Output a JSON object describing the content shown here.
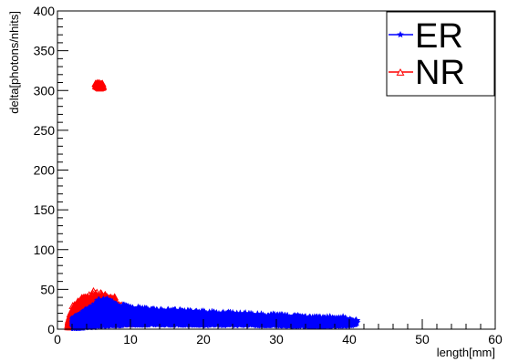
{
  "chart_data": {
    "type": "scatter",
    "title": "",
    "xlabel": "length[mm]",
    "ylabel": "delta[photons/nhits]",
    "xlim": [
      0,
      60
    ],
    "ylim": [
      0,
      400
    ],
    "x_major_ticks": [
      0,
      10,
      20,
      30,
      40,
      50,
      60
    ],
    "y_major_ticks": [
      0,
      50,
      100,
      150,
      200,
      250,
      300,
      350,
      400
    ],
    "legend_position": "top-right",
    "grid": false,
    "series": [
      {
        "name": "ER",
        "color": "#0000ff",
        "marker": "star",
        "envelope": {
          "x": [
            2.2,
            3,
            4,
            5,
            5.5,
            6,
            7,
            8,
            10,
            12,
            15,
            20,
            25,
            30,
            35,
            40,
            41
          ],
          "y_max": [
            14,
            18,
            25,
            30,
            36,
            38,
            37,
            32,
            28,
            26,
            24,
            22,
            20,
            18,
            15,
            12,
            11
          ],
          "y_min": [
            2,
            2,
            3,
            3,
            4,
            4,
            5,
            5,
            6,
            6,
            6,
            6,
            6,
            5,
            4,
            5,
            8
          ]
        }
      },
      {
        "name": "NR",
        "color": "#ff0000",
        "marker": "open-triangle",
        "envelope": {
          "x": [
            1.5,
            2,
            3,
            4,
            5,
            6,
            7,
            8,
            9,
            10,
            12
          ],
          "y_max": [
            8,
            28,
            36,
            42,
            48,
            46,
            40,
            34,
            28,
            22,
            10
          ],
          "y_min": [
            2,
            2,
            3,
            4,
            5,
            6,
            6,
            6,
            6,
            6,
            6
          ]
        },
        "cluster": {
          "x": [
            5.2,
            6.2
          ],
          "y": [
            302,
            309
          ]
        }
      }
    ]
  }
}
